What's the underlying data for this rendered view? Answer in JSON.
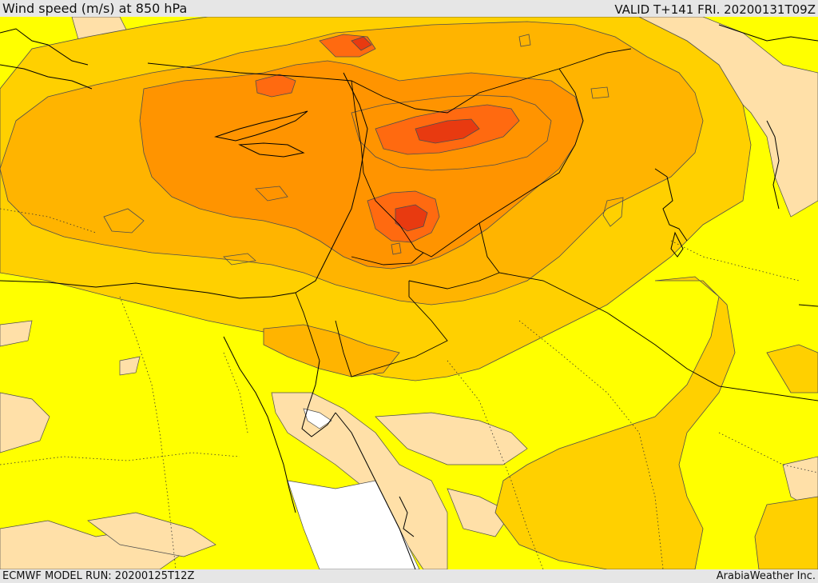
{
  "header": {
    "title": "Wind speed (m/s) at 850 hPa",
    "valid": "VALID T+141 FRI. 20200131T09Z"
  },
  "footer": {
    "model_run": "ECMWF MODEL RUN: 20200125T12Z",
    "credit": "ArabiaWeather Inc."
  },
  "map": {
    "variable": "wind speed",
    "level": "850 hPa",
    "units": "m/s",
    "fill_colors": {
      "lowest": "#ffffff",
      "low": "#ffe0a8",
      "base": "#ffff00",
      "moderate": "#ffd000",
      "strong": "#ffb400",
      "stronger": "#ff9400",
      "very_strong": "#ff6a10",
      "strongest": "#e83a10"
    },
    "line_colors": {
      "coast_and_borders": "#000000",
      "contour": "#4d4d4d"
    }
  }
}
